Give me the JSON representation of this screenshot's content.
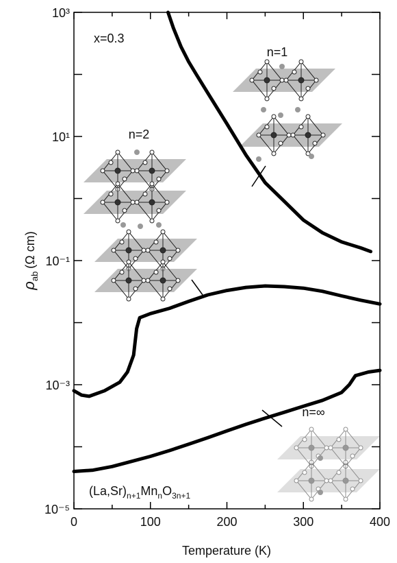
{
  "chart_data": {
    "type": "line",
    "xlabel": "Temperature (K)",
    "ylabel": {
      "symbol": "ρ",
      "subscript": "ab",
      "unit": "(Ω cm)"
    },
    "annotation": "x=0.3",
    "formula_parts": [
      {
        "text": "(La,Sr)"
      },
      {
        "sub": "n+1"
      },
      {
        "text": "Mn"
      },
      {
        "sub": "n"
      },
      {
        "text": "O"
      },
      {
        "sub": "3n+1"
      }
    ],
    "log_y": true,
    "xlim": [
      0,
      400
    ],
    "ylim": [
      1e-05,
      1000
    ],
    "xticks": [
      0,
      100,
      200,
      300,
      400
    ],
    "xticks_minor": [
      50,
      150,
      250,
      350
    ],
    "yticks": [
      {
        "value": 1000,
        "label": "10³"
      },
      {
        "value": 10,
        "label": "10¹"
      },
      {
        "value": 0.1,
        "label": "10⁻¹"
      },
      {
        "value": 0.001,
        "label": "10⁻³"
      },
      {
        "value": 1e-05,
        "label": "10⁻⁵"
      }
    ],
    "yticks_minor": [
      100,
      1,
      0.01,
      0.0001
    ],
    "series": [
      {
        "name": "n=1",
        "color": "#000000",
        "x": [
          123,
          130,
          140,
          150,
          160,
          175,
          200,
          225,
          250,
          275,
          300,
          325,
          350,
          375,
          388
        ],
        "values": [
          1000,
          560,
          280,
          160,
          100,
          50,
          16,
          5,
          1.8,
          0.9,
          0.45,
          0.28,
          0.2,
          0.16,
          0.14
        ]
      },
      {
        "name": "n=2",
        "color": "#000000",
        "x": [
          0,
          10,
          20,
          40,
          60,
          70,
          78,
          82,
          86,
          100,
          125,
          150,
          175,
          200,
          225,
          250,
          275,
          300,
          325,
          350,
          375,
          400
        ],
        "values": [
          0.0008,
          0.00068,
          0.00065,
          0.0008,
          0.0011,
          0.0016,
          0.003,
          0.008,
          0.012,
          0.014,
          0.017,
          0.022,
          0.028,
          0.033,
          0.037,
          0.039,
          0.038,
          0.036,
          0.032,
          0.027,
          0.023,
          0.02
        ]
      },
      {
        "name": "n=∞",
        "color": "#000000",
        "x": [
          0,
          25,
          50,
          75,
          100,
          125,
          150,
          175,
          200,
          225,
          250,
          275,
          300,
          325,
          350,
          360,
          368,
          385,
          400
        ],
        "values": [
          4e-05,
          4.2e-05,
          4.8e-05,
          5.8e-05,
          7e-05,
          8.7e-05,
          0.00011,
          0.00014,
          0.00018,
          0.00023,
          0.00029,
          0.00036,
          0.00045,
          0.00056,
          0.00075,
          0.001,
          0.0014,
          0.0016,
          0.0017
        ]
      }
    ]
  }
}
